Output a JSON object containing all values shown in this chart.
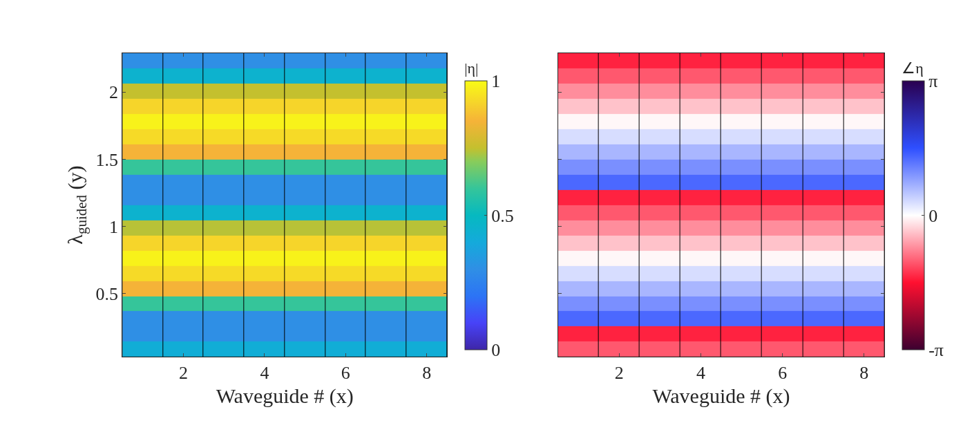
{
  "chart_data": [
    {
      "type": "heatmap",
      "xlabel": "Waveguide # (x)",
      "ylabel": "λ$_{guided}$ (y)",
      "clabel": "|η|",
      "x": [
        1,
        2,
        3,
        4,
        5,
        6,
        7,
        8
      ],
      "cells": [
        [
          0.3,
          0.3,
          0.3,
          0.3,
          0.3,
          0.3,
          0.3,
          0.3
        ],
        [
          0.45,
          0.45,
          0.45,
          0.45,
          0.45,
          0.45,
          0.45,
          0.45
        ],
        [
          0.75,
          0.75,
          0.75,
          0.75,
          0.75,
          0.75,
          0.75,
          0.75
        ],
        [
          0.92,
          0.92,
          0.92,
          0.92,
          0.92,
          0.92,
          0.92,
          0.92
        ],
        [
          0.98,
          0.98,
          0.98,
          0.98,
          0.98,
          0.98,
          0.98,
          0.98
        ],
        [
          0.93,
          0.93,
          0.93,
          0.93,
          0.93,
          0.93,
          0.93,
          0.93
        ],
        [
          0.85,
          0.85,
          0.85,
          0.85,
          0.85,
          0.85,
          0.85,
          0.85
        ],
        [
          0.6,
          0.6,
          0.6,
          0.6,
          0.6,
          0.6,
          0.6,
          0.6
        ],
        [
          0.3,
          0.3,
          0.3,
          0.3,
          0.3,
          0.3,
          0.3,
          0.3
        ],
        [
          0.3,
          0.3,
          0.3,
          0.3,
          0.3,
          0.3,
          0.3,
          0.3
        ],
        [
          0.45,
          0.45,
          0.45,
          0.45,
          0.45,
          0.45,
          0.45,
          0.45
        ],
        [
          0.74,
          0.74,
          0.74,
          0.74,
          0.74,
          0.74,
          0.74,
          0.74
        ],
        [
          0.92,
          0.92,
          0.92,
          0.92,
          0.92,
          0.92,
          0.92,
          0.92
        ],
        [
          0.98,
          0.98,
          0.98,
          0.98,
          0.98,
          0.98,
          0.98,
          0.98
        ],
        [
          0.93,
          0.93,
          0.93,
          0.93,
          0.93,
          0.93,
          0.93,
          0.93
        ],
        [
          0.85,
          0.85,
          0.85,
          0.85,
          0.85,
          0.85,
          0.85,
          0.85
        ],
        [
          0.6,
          0.6,
          0.6,
          0.6,
          0.6,
          0.6,
          0.6,
          0.6
        ],
        [
          0.3,
          0.3,
          0.3,
          0.3,
          0.3,
          0.3,
          0.3,
          0.3
        ],
        [
          0.3,
          0.3,
          0.3,
          0.3,
          0.3,
          0.3,
          0.3,
          0.3
        ],
        [
          0.42,
          0.42,
          0.42,
          0.42,
          0.42,
          0.42,
          0.42,
          0.42
        ]
      ],
      "clim": [
        0,
        1
      ],
      "cticks": [
        0,
        0.5,
        1
      ],
      "xlim": [
        0.5,
        8.5
      ],
      "xticks": [
        2,
        4,
        6,
        8
      ],
      "ylim": [
        0.03,
        2.29
      ],
      "yticks": [
        0.5,
        1,
        1.5,
        2
      ]
    },
    {
      "type": "heatmap",
      "xlabel": "Waveguide # (x)",
      "clabel": "∠η",
      "x": [
        1,
        2,
        3,
        4,
        5,
        6,
        7,
        8
      ],
      "cells": [
        [
          -1.45,
          -1.45,
          -1.45,
          -1.45,
          -1.45,
          -1.45,
          -1.45,
          -1.45
        ],
        [
          -1.1,
          -1.1,
          -1.1,
          -1.1,
          -1.1,
          -1.1,
          -1.1,
          -1.1
        ],
        [
          -0.75,
          -0.75,
          -0.75,
          -0.75,
          -0.75,
          -0.75,
          -0.75,
          -0.75
        ],
        [
          -0.4,
          -0.4,
          -0.4,
          -0.4,
          -0.4,
          -0.4,
          -0.4,
          -0.4
        ],
        [
          -0.05,
          -0.05,
          -0.05,
          -0.05,
          -0.05,
          -0.05,
          -0.05,
          -0.05
        ],
        [
          0.3,
          0.3,
          0.3,
          0.3,
          0.3,
          0.3,
          0.3,
          0.3
        ],
        [
          0.65,
          0.65,
          0.65,
          0.65,
          0.65,
          0.65,
          0.65,
          0.65
        ],
        [
          1.0,
          1.0,
          1.0,
          1.0,
          1.0,
          1.0,
          1.0,
          1.0
        ],
        [
          1.35,
          1.35,
          1.35,
          1.35,
          1.35,
          1.35,
          1.35,
          1.35
        ],
        [
          -1.45,
          -1.45,
          -1.45,
          -1.45,
          -1.45,
          -1.45,
          -1.45,
          -1.45
        ],
        [
          -1.1,
          -1.1,
          -1.1,
          -1.1,
          -1.1,
          -1.1,
          -1.1,
          -1.1
        ],
        [
          -0.75,
          -0.75,
          -0.75,
          -0.75,
          -0.75,
          -0.75,
          -0.75,
          -0.75
        ],
        [
          -0.4,
          -0.4,
          -0.4,
          -0.4,
          -0.4,
          -0.4,
          -0.4,
          -0.4
        ],
        [
          -0.05,
          -0.05,
          -0.05,
          -0.05,
          -0.05,
          -0.05,
          -0.05,
          -0.05
        ],
        [
          0.3,
          0.3,
          0.3,
          0.3,
          0.3,
          0.3,
          0.3,
          0.3
        ],
        [
          0.65,
          0.65,
          0.65,
          0.65,
          0.65,
          0.65,
          0.65,
          0.65
        ],
        [
          1.0,
          1.0,
          1.0,
          1.0,
          1.0,
          1.0,
          1.0,
          1.0
        ],
        [
          1.35,
          1.35,
          1.35,
          1.35,
          1.35,
          1.35,
          1.35,
          1.35
        ],
        [
          -1.45,
          -1.45,
          -1.45,
          -1.45,
          -1.45,
          -1.45,
          -1.45,
          -1.45
        ],
        [
          -1.1,
          -1.1,
          -1.1,
          -1.1,
          -1.1,
          -1.1,
          -1.1,
          -1.1
        ]
      ],
      "clim": [
        -3.1416,
        3.1416
      ],
      "cticks": [
        {
          "value": -3.1416,
          "label": "-π"
        },
        0,
        {
          "value": 3.1416,
          "label": "π"
        }
      ],
      "xlim": [
        0.5,
        8.5
      ],
      "xticks": [
        2,
        4,
        6,
        8
      ],
      "ylim": [
        0.03,
        2.29
      ],
      "yticks": [
        {
          "value": 0.5,
          "label": null
        },
        {
          "value": 1,
          "label": null
        },
        {
          "value": 1.5,
          "label": null
        },
        {
          "value": 2,
          "label": null
        }
      ],
      "tick_labels": "x"
    }
  ]
}
